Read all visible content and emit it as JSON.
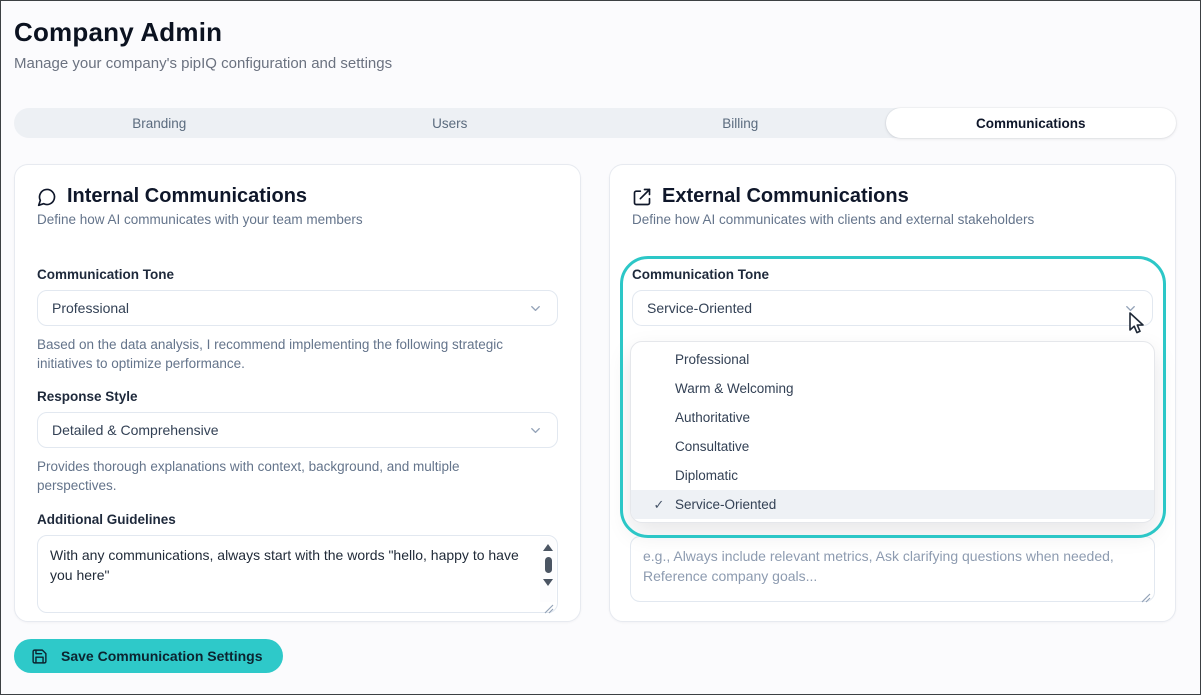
{
  "page": {
    "title": "Company Admin",
    "subtitle": "Manage your company's pipIQ configuration and settings"
  },
  "tabs": [
    {
      "label": "Branding",
      "active": false
    },
    {
      "label": "Users",
      "active": false
    },
    {
      "label": "Billing",
      "active": false
    },
    {
      "label": "Communications",
      "active": true
    }
  ],
  "internal": {
    "icon": "message-circle-icon",
    "title": "Internal Communications",
    "subtitle": "Define how AI communicates with your team members",
    "tone_label": "Communication Tone",
    "tone_value": "Professional",
    "tone_help": "Based on the data analysis, I recommend implementing the following strategic initiatives to optimize performance.",
    "style_label": "Response Style",
    "style_value": "Detailed & Comprehensive",
    "style_help": "Provides thorough explanations with context, background, and multiple perspectives.",
    "guidelines_label": "Additional Guidelines",
    "guidelines_value": "With any communications, always start with the words \"hello, happy to have you here\""
  },
  "external": {
    "icon": "external-link-icon",
    "title": "External Communications",
    "subtitle": "Define how AI communicates with clients and external stakeholders",
    "tone_label": "Communication Tone",
    "tone_value": "Service-Oriented",
    "dropdown": {
      "options": [
        "Professional",
        "Warm & Welcoming",
        "Authoritative",
        "Consultative",
        "Diplomatic",
        "Service-Oriented"
      ],
      "selected": "Service-Oriented",
      "check_glyph": "✓"
    },
    "guidelines_placeholder": "e.g., Always include relevant metrics, Ask clarifying questions when needed, Reference company goals..."
  },
  "footer": {
    "save_label": "Save Communication Settings"
  },
  "colors": {
    "accent_teal": "#2ec9c9",
    "highlight_ring": "#2cc7c7"
  }
}
